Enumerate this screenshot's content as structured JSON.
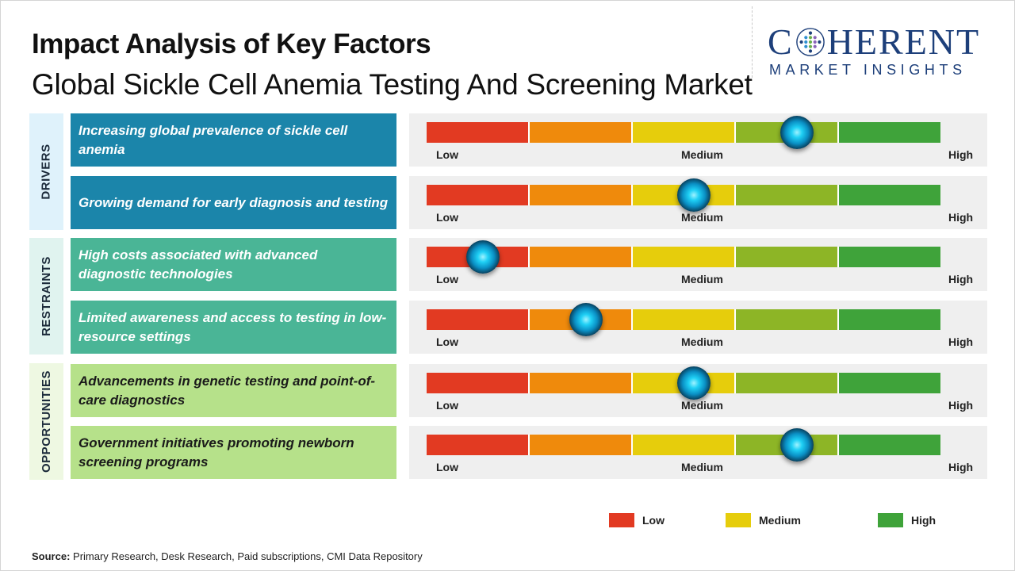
{
  "header": {
    "title": "Impact Analysis of Key Factors",
    "subtitle": "Global Sickle Cell Anemia Testing And Screening Market"
  },
  "logo": {
    "brand_top": "COHERENT",
    "brand_bottom": "MARKET INSIGHTS",
    "color": "#1d3f7a"
  },
  "chart_data": {
    "type": "table",
    "title": "Impact Analysis of Key Factors",
    "scale": {
      "min": 0,
      "max": 1,
      "labels": [
        "Low",
        "Medium",
        "High"
      ]
    },
    "segment_colors": [
      "#e23a22",
      "#ef8a0c",
      "#e6cd0c",
      "#8db526",
      "#3fa33a"
    ],
    "categories": [
      {
        "name": "DRIVERS",
        "factors": [
          {
            "label": "Increasing global prevalence of sickle cell anemia",
            "impact": 0.72
          },
          {
            "label": "Growing demand for early diagnosis and testing",
            "impact": 0.52
          }
        ]
      },
      {
        "name": "RESTRAINTS",
        "factors": [
          {
            "label": "High costs associated with advanced diagnostic technologies",
            "impact": 0.11
          },
          {
            "label": "Limited awareness and access to testing in low-resource settings",
            "impact": 0.31
          }
        ]
      },
      {
        "name": "OPPORTUNITIES",
        "factors": [
          {
            "label": "Advancements in genetic testing and point-of-care diagnostics",
            "impact": 0.52
          },
          {
            "label": "Government initiatives promoting newborn screening programs",
            "impact": 0.72
          }
        ]
      }
    ],
    "legend": [
      {
        "label": "Low",
        "color": "#e23a22"
      },
      {
        "label": "Medium",
        "color": "#e6cd0c"
      },
      {
        "label": "High",
        "color": "#3fa33a"
      }
    ]
  },
  "footer": {
    "source_label": "Source:",
    "source_text": "Primary Research, Desk Research, Paid subscriptions, CMI Data Repository"
  }
}
